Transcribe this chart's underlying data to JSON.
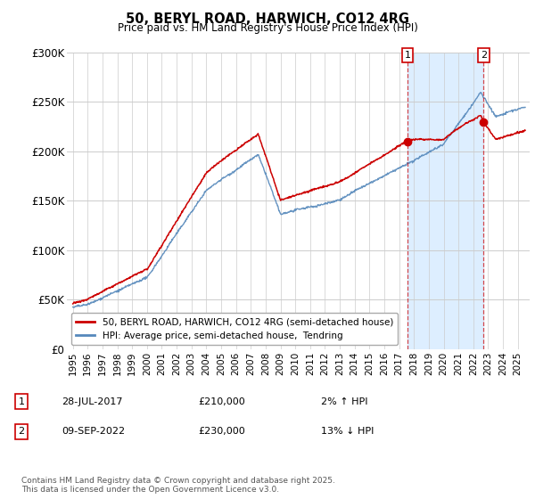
{
  "title": "50, BERYL ROAD, HARWICH, CO12 4RG",
  "subtitle": "Price paid vs. HM Land Registry's House Price Index (HPI)",
  "ytick_labels": [
    "£0",
    "£50K",
    "£100K",
    "£150K",
    "£200K",
    "£250K",
    "£300K"
  ],
  "yticks": [
    0,
    50000,
    100000,
    150000,
    200000,
    250000,
    300000
  ],
  "ylim": [
    0,
    300000
  ],
  "xlim_left": 1994.6,
  "xlim_right": 2025.8,
  "legend_line1": "50, BERYL ROAD, HARWICH, CO12 4RG (semi-detached house)",
  "legend_line2": "HPI: Average price, semi-detached house,  Tendring",
  "annotation1_num": "1",
  "annotation1_date": "28-JUL-2017",
  "annotation1_price": "£210,000",
  "annotation1_hpi": "2% ↑ HPI",
  "annotation2_num": "2",
  "annotation2_date": "09-SEP-2022",
  "annotation2_price": "£230,000",
  "annotation2_hpi": "13% ↓ HPI",
  "footer": "Contains HM Land Registry data © Crown copyright and database right 2025.\nThis data is licensed under the Open Government Licence v3.0.",
  "red_color": "#cc0000",
  "blue_color": "#5588bb",
  "shade_color": "#ddeeff",
  "bg_color": "#ffffff",
  "grid_color": "#cccccc",
  "sale1_x": 2017.57,
  "sale1_y": 210000,
  "sale2_x": 2022.69,
  "sale2_y": 230000
}
